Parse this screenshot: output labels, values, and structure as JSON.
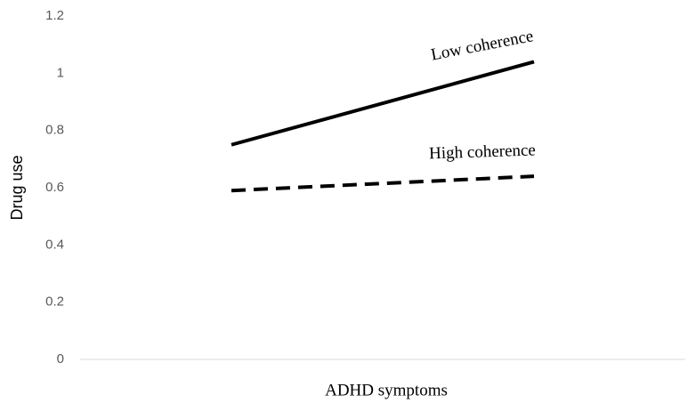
{
  "chart_data": {
    "type": "line",
    "x_label": "ADHD symptoms",
    "y_label": "Drug use",
    "categories": [
      null,
      null
    ],
    "series": [
      {
        "name": "Low coherence",
        "color": "#000000",
        "dash": "solid",
        "values": [
          0.75,
          1.04
        ]
      },
      {
        "name": "High coherence",
        "color": "#000000",
        "dash": "dashed",
        "values": [
          0.59,
          0.64
        ]
      }
    ],
    "ylim": [
      0,
      1.2
    ],
    "yticks": [
      0,
      0.2,
      0.4,
      0.6,
      0.8,
      1,
      1.2
    ],
    "grid": false
  }
}
